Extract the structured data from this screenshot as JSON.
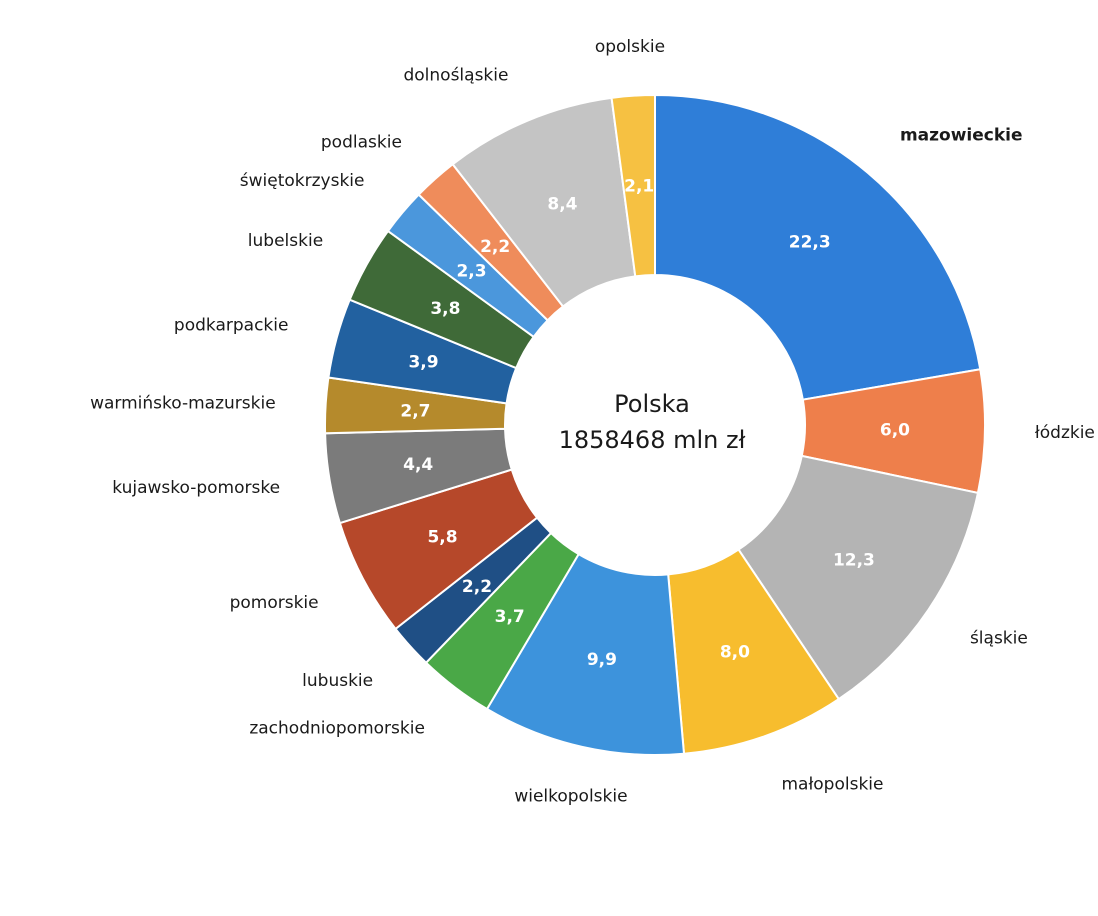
{
  "chart_data": {
    "type": "pie",
    "variant": "donut",
    "center_text": [
      "Polska",
      "1858468 mln zł"
    ],
    "slices": [
      {
        "category": "mazowieckie",
        "value": 22.3,
        "value_label": "22,3",
        "color": "#2f7ed8",
        "label_color": "#ffffff",
        "bold": true
      },
      {
        "category": "łódzkie",
        "value": 6.0,
        "value_label": "6,0",
        "color": "#ee7f4b",
        "label_color": "#ffffff"
      },
      {
        "category": "śląskie",
        "value": 12.3,
        "value_label": "12,3",
        "color": "#b4b4b4",
        "label_color": "#ffffff"
      },
      {
        "category": "małopolskie",
        "value": 8.0,
        "value_label": "8,0",
        "color": "#f7bd2e",
        "label_color": "#ffffff"
      },
      {
        "category": "wielkopolskie",
        "value": 9.9,
        "value_label": "9,9",
        "color": "#3d93dc",
        "label_color": "#ffffff"
      },
      {
        "category": "zachodniopomorskie",
        "value": 3.7,
        "value_label": "3,7",
        "color": "#4aa847",
        "label_color": "#ffffff"
      },
      {
        "category": "lubuskie",
        "value": 2.2,
        "value_label": "2,2",
        "color": "#1f4f85",
        "label_color": "#ffffff"
      },
      {
        "category": "pomorskie",
        "value": 5.8,
        "value_label": "5,8",
        "color": "#b6482a",
        "label_color": "#ffffff"
      },
      {
        "category": "kujawsko-pomorske",
        "value": 4.4,
        "value_label": "4,4",
        "color": "#7b7b7b",
        "label_color": "#ffffff"
      },
      {
        "category": "warmińsko-mazurskie",
        "value": 2.7,
        "value_label": "2,7",
        "color": "#b58a2c",
        "label_color": "#ffffff"
      },
      {
        "category": "podkarpackie",
        "value": 3.9,
        "value_label": "3,9",
        "color": "#2261a0",
        "label_color": "#ffffff"
      },
      {
        "category": "lubelskie",
        "value": 3.8,
        "value_label": "3,8",
        "color": "#3f6a38",
        "label_color": "#ffffff"
      },
      {
        "category": "świętokrzyskie",
        "value": 2.3,
        "value_label": "2,3",
        "color": "#4b97dc",
        "label_color": "#ffffff"
      },
      {
        "category": "podlaskie",
        "value": 2.2,
        "value_label": "2,2",
        "color": "#ef8c5b",
        "label_color": "#ffffff"
      },
      {
        "category": "dolnośląskie",
        "value": 8.4,
        "value_label": "8,4",
        "color": "#c4c4c4",
        "label_color": "#ffffff"
      },
      {
        "category": "opolskie",
        "value": 2.1,
        "value_label": "2,1",
        "color": "#f6c142",
        "label_color": "#ffffff"
      }
    ]
  }
}
